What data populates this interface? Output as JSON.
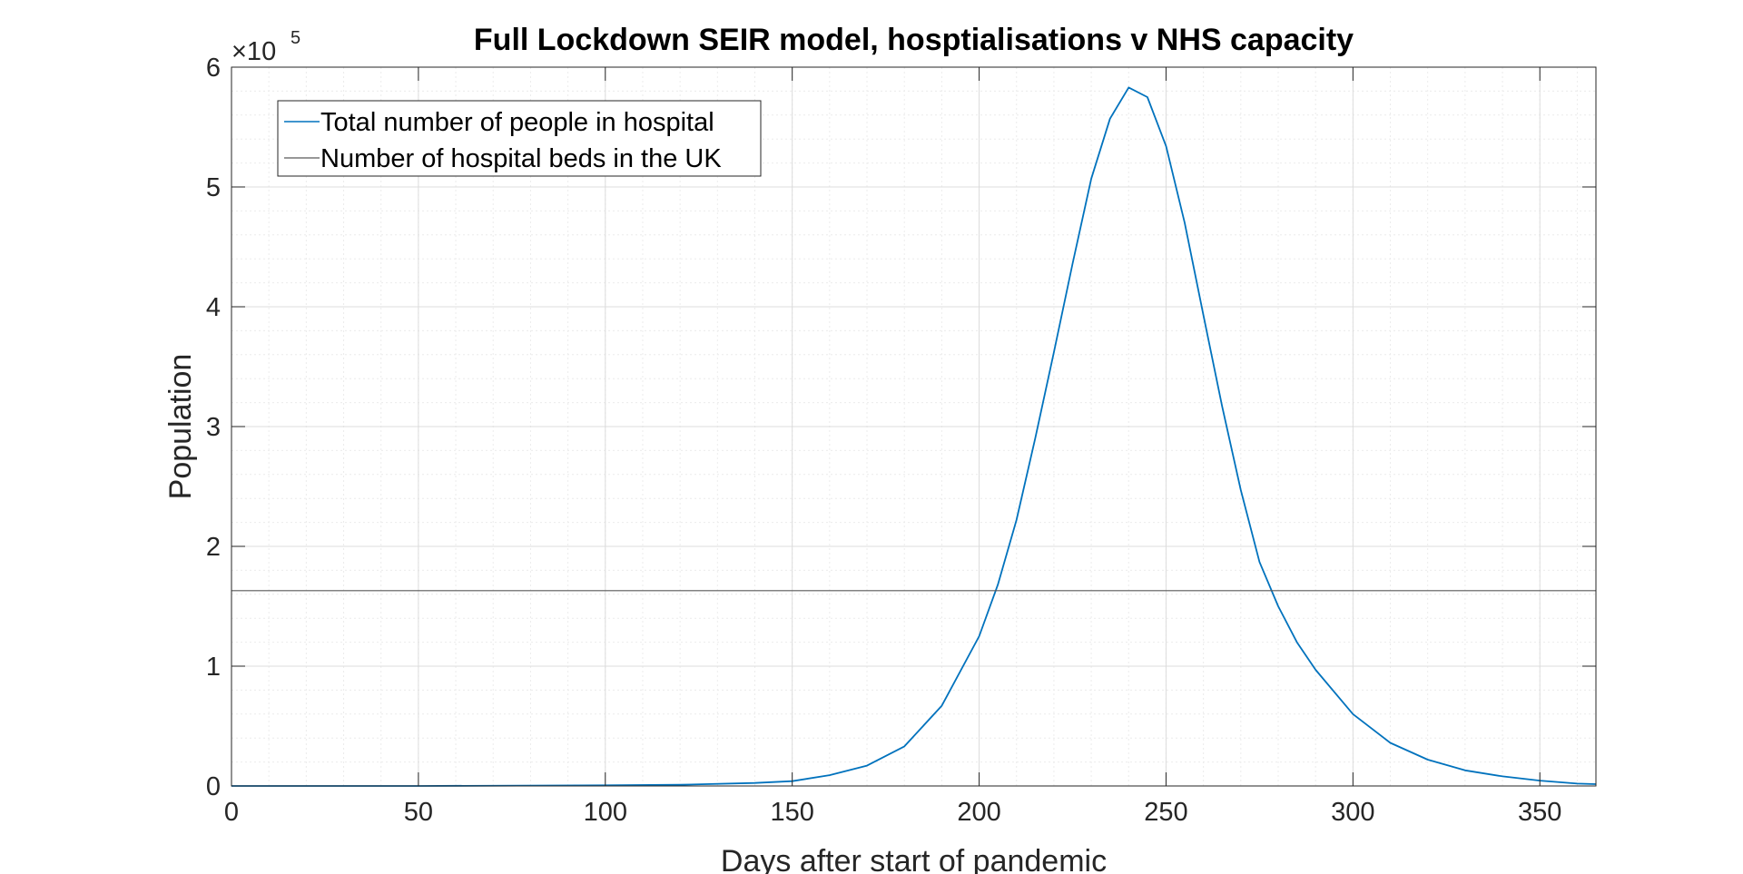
{
  "chart_data": {
    "type": "line",
    "title": "Full Lockdown SEIR model, hosptialisations v NHS capacity",
    "xlabel": "Days after start of pandemic",
    "ylabel": "Population",
    "xlim": [
      0,
      365
    ],
    "ylim": [
      0,
      600000
    ],
    "x_ticks": [
      "0",
      "50",
      "100",
      "150",
      "200",
      "250",
      "300",
      "350"
    ],
    "x_tick_values": [
      0,
      50,
      100,
      150,
      200,
      250,
      300,
      350
    ],
    "y_ticks": [
      "0",
      "1",
      "2",
      "3",
      "4",
      "5",
      "6"
    ],
    "y_tick_values": [
      0,
      100000,
      200000,
      300000,
      400000,
      500000,
      600000
    ],
    "y_multiplier": {
      "base": "×10",
      "exponent": "5"
    },
    "grid": true,
    "minor_grid": true,
    "legend_position": "top-left",
    "series": [
      {
        "name": "Total number of people in hospital",
        "color": "#0072BD",
        "x": [
          0,
          50,
          100,
          120,
          140,
          150,
          160,
          170,
          180,
          190,
          200,
          205,
          210,
          215,
          220,
          225,
          230,
          235,
          240,
          245,
          250,
          255,
          260,
          265,
          270,
          275,
          280,
          285,
          290,
          300,
          310,
          320,
          330,
          340,
          350,
          360,
          365
        ],
        "y": [
          0,
          0,
          500,
          1000,
          2500,
          4000,
          9000,
          17000,
          33000,
          67000,
          125000,
          168000,
          222000,
          290000,
          362000,
          436000,
          507000,
          557000,
          583000,
          575000,
          534000,
          470000,
          393000,
          317000,
          247000,
          187000,
          150000,
          120000,
          97000,
          60000,
          36000,
          22000,
          13000,
          8000,
          4500,
          2000,
          1500
        ]
      },
      {
        "name": "Number of hospital beds in the UK",
        "color": "#595959",
        "x": [
          0,
          365
        ],
        "y": [
          163000,
          163000
        ]
      }
    ]
  }
}
